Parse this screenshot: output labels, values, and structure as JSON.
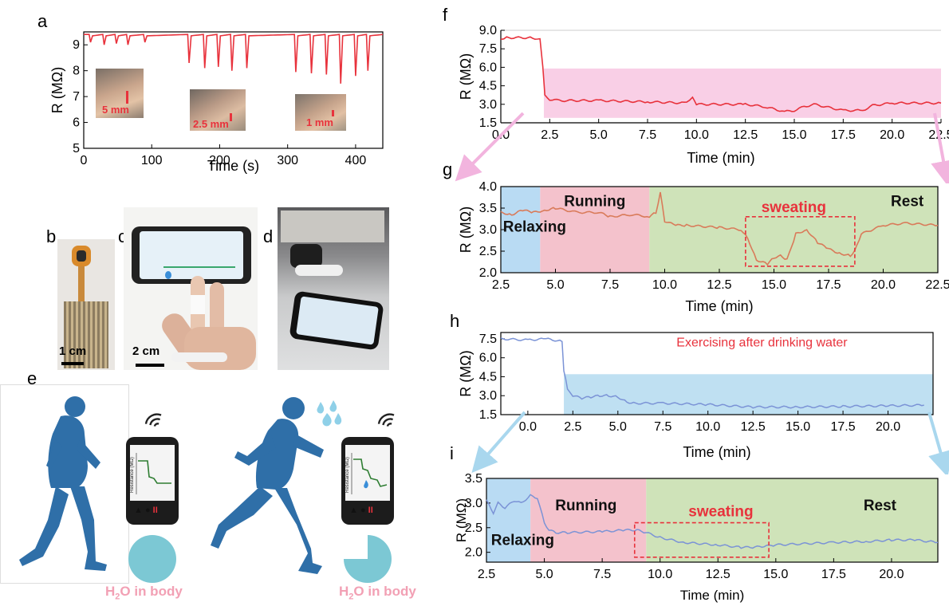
{
  "colors": {
    "red": "#e8323c",
    "blue": "#2f6fa8",
    "light_blue_line": "#7b93d6",
    "pink_band": "#f9cfe6",
    "blue_band": "#bfe0f2",
    "relax_blue": "#b9dbf3",
    "run_pink": "#f4c2cc",
    "rest_green": "#cfe3b9",
    "sweat_line": "#d97b5a",
    "h2o_pink": "#f2a0b4",
    "teal_circle": "#7cc8d4"
  },
  "panel_letters": {
    "a": "a",
    "b": "b",
    "c": "c",
    "d": "d",
    "e": "e",
    "f": "f",
    "g": "g",
    "h": "h",
    "i": "i"
  },
  "photo_labels": {
    "a_inset1": "5 mm",
    "a_inset2": "2.5 mm",
    "a_inset3": "1 mm",
    "b_scale": "1 cm",
    "c_scale": "2 cm"
  },
  "illustration": {
    "h2o_label_1": "H",
    "h2o_sub_1": "2",
    "h2o_rest_1": "O in body",
    "h2o_label_2": "H",
    "h2o_sub_2": "2",
    "h2o_rest_2": "O in body",
    "phone_axis_label": "Resistance (MΩ)",
    "phone_pause": "II",
    "wifi_icon": "wifi-icon"
  },
  "chart_data": [
    {
      "id": "a",
      "type": "line",
      "xlabel": "Time (s)",
      "ylabel": "R (MΩ)",
      "xlim": [
        0,
        440
      ],
      "ylim": [
        5,
        9.5
      ],
      "xticks": [
        0,
        100,
        200,
        300,
        400
      ],
      "yticks": [
        5,
        6,
        7,
        8,
        9
      ],
      "baseline": 9.4,
      "series": [
        {
          "values_desc": "baseline ~9.4 with dips",
          "dips": [
            {
              "x": 10,
              "y": 9.1
            },
            {
              "x": 30,
              "y": 9.0
            },
            {
              "x": 48,
              "y": 9.05
            },
            {
              "x": 65,
              "y": 9.0
            },
            {
              "x": 90,
              "y": 9.1
            },
            {
              "x": 155,
              "y": 8.3
            },
            {
              "x": 178,
              "y": 8.1
            },
            {
              "x": 198,
              "y": 8.15
            },
            {
              "x": 218,
              "y": 8.0
            },
            {
              "x": 240,
              "y": 8.1
            },
            {
              "x": 312,
              "y": 7.95
            },
            {
              "x": 335,
              "y": 7.9
            },
            {
              "x": 357,
              "y": 7.85
            },
            {
              "x": 378,
              "y": 7.5
            },
            {
              "x": 400,
              "y": 7.8
            },
            {
              "x": 418,
              "y": 8.0
            }
          ]
        }
      ]
    },
    {
      "id": "f",
      "type": "line",
      "xlabel": "Time (min)",
      "ylabel": "R (MΩ)",
      "xlim": [
        0,
        22.5
      ],
      "ylim": [
        1.5,
        9.0
      ],
      "xticks": [
        "0.0",
        "2.5",
        "5.0",
        "7.5",
        "10.0",
        "12.5",
        "15.0",
        "17.5",
        "20.0",
        "22.5"
      ],
      "yticks": [
        "1.5",
        "3.0",
        "4.5",
        "6.0",
        "7.5",
        "9.0"
      ],
      "highlight": {
        "x": [
          2.2,
          22.5
        ],
        "y": [
          1.9,
          5.9
        ]
      },
      "series": [
        {
          "x": [
            0,
            0.3,
            1.5,
            2.0,
            2.15,
            2.25,
            2.5,
            3.0,
            5.0,
            7.5,
            9.5,
            9.8,
            10.0,
            12.5,
            13.5,
            14.5,
            15.0,
            15.5,
            16.0,
            17.5,
            18.5,
            19.0,
            20.0,
            22.5
          ],
          "y": [
            8.2,
            8.4,
            8.4,
            8.3,
            6.0,
            3.7,
            3.4,
            3.3,
            3.3,
            3.2,
            3.1,
            3.5,
            3.0,
            3.0,
            2.8,
            2.4,
            2.5,
            2.8,
            3.0,
            2.5,
            2.5,
            2.9,
            3.1,
            3.1
          ]
        }
      ]
    },
    {
      "id": "g",
      "type": "line",
      "xlabel": "Time (min)",
      "ylabel": "R (MΩ)",
      "xlim": [
        2.5,
        22.5
      ],
      "ylim": [
        2.0,
        4.0
      ],
      "xticks": [
        "2.5",
        "5.0",
        "7.5",
        "10.0",
        "12.5",
        "15.0",
        "17.5",
        "20.0",
        "22.5"
      ],
      "yticks": [
        "2.0",
        "2.5",
        "3.0",
        "3.5",
        "4.0"
      ],
      "regions": [
        {
          "label": "Relaxing",
          "x": [
            2.5,
            4.3
          ]
        },
        {
          "label": "Running",
          "x": [
            4.3,
            9.3
          ]
        },
        {
          "label": "Rest",
          "x": [
            9.3,
            22.5
          ]
        }
      ],
      "annotation": {
        "label": "sweating",
        "x": [
          13.7,
          18.7
        ],
        "y": [
          2.15,
          3.3
        ]
      },
      "series": [
        {
          "x": [
            2.5,
            3.0,
            3.5,
            4.0,
            4.5,
            5.0,
            6.0,
            7.0,
            7.5,
            8.5,
            9.3,
            9.6,
            9.8,
            10.0,
            10.5,
            11.0,
            12.5,
            13.5,
            13.8,
            14.2,
            14.7,
            15.0,
            15.3,
            15.6,
            16.0,
            16.5,
            17.0,
            17.5,
            18.0,
            18.5,
            18.7,
            19.0,
            20.0,
            21.0,
            22.5
          ],
          "y": [
            3.4,
            3.35,
            3.45,
            3.4,
            3.45,
            3.5,
            3.4,
            3.4,
            3.3,
            3.35,
            3.3,
            3.4,
            3.85,
            3.2,
            3.1,
            3.1,
            3.05,
            3.0,
            2.8,
            2.3,
            2.2,
            2.35,
            2.4,
            2.3,
            2.9,
            3.0,
            2.7,
            2.55,
            2.45,
            2.4,
            2.5,
            2.9,
            3.1,
            3.15,
            3.1
          ]
        }
      ]
    },
    {
      "id": "h",
      "type": "line",
      "xlabel": "Time (min)",
      "ylabel": "R (MΩ)",
      "title": "Exercising after drinking water",
      "xlim": [
        -1.5,
        22.5
      ],
      "ylim": [
        1.5,
        8.0
      ],
      "xticks": [
        "0.0",
        "2.5",
        "5.0",
        "7.5",
        "10.0",
        "12.5",
        "15.0",
        "17.5",
        "20.0"
      ],
      "yticks": [
        "1.5",
        "3.0",
        "4.5",
        "6.0",
        "7.5"
      ],
      "highlight": {
        "x": [
          2.0,
          22.5
        ],
        "y": [
          1.5,
          4.7
        ]
      },
      "series": [
        {
          "x": [
            -1.5,
            0,
            1.0,
            1.9,
            2.0,
            2.2,
            2.5,
            3.0,
            3.5,
            4.0,
            4.5,
            5.0,
            5.5,
            6.0,
            7.5,
            10.0,
            12.5,
            15.0,
            17.5,
            20.0,
            22.0
          ],
          "y": [
            7.5,
            7.4,
            7.5,
            7.3,
            5.0,
            3.6,
            3.0,
            2.8,
            2.9,
            3.0,
            3.0,
            2.9,
            2.5,
            2.4,
            2.4,
            2.3,
            2.1,
            2.1,
            2.15,
            2.2,
            2.25
          ]
        }
      ]
    },
    {
      "id": "i",
      "type": "line",
      "xlabel": "Time (min)",
      "ylabel": "R (MΩ)",
      "xlim": [
        2.5,
        22.0
      ],
      "ylim": [
        1.8,
        3.5
      ],
      "xticks": [
        "2.5",
        "5.0",
        "7.5",
        "10.0",
        "12.5",
        "15.0",
        "17.5",
        "20.0"
      ],
      "yticks": [
        "2.0",
        "2.5",
        "3.0",
        "3.5"
      ],
      "regions": [
        {
          "label": "Relaxing",
          "x": [
            2.5,
            4.4
          ]
        },
        {
          "label": "Running",
          "x": [
            4.4,
            9.4
          ]
        },
        {
          "label": "Rest",
          "x": [
            9.4,
            22.0
          ]
        }
      ],
      "annotation": {
        "label": "sweating",
        "x": [
          8.9,
          14.7
        ],
        "y": [
          1.9,
          2.6
        ]
      },
      "series": [
        {
          "x": [
            2.5,
            2.8,
            3.0,
            3.3,
            3.7,
            4.0,
            4.4,
            4.7,
            5.0,
            5.2,
            5.5,
            6.0,
            7.5,
            8.5,
            9.0,
            9.4,
            10.0,
            11.0,
            12.5,
            13.5,
            14.0,
            14.5,
            15.0,
            17.5,
            19.0,
            20.0,
            21.0,
            22.0
          ],
          "y": [
            3.05,
            2.8,
            3.0,
            2.9,
            3.05,
            3.0,
            3.15,
            3.1,
            2.6,
            2.45,
            2.4,
            2.4,
            2.42,
            2.45,
            2.45,
            2.4,
            2.3,
            2.2,
            2.15,
            2.1,
            2.1,
            2.12,
            2.15,
            2.2,
            2.22,
            2.25,
            2.25,
            2.2
          ]
        }
      ]
    }
  ]
}
